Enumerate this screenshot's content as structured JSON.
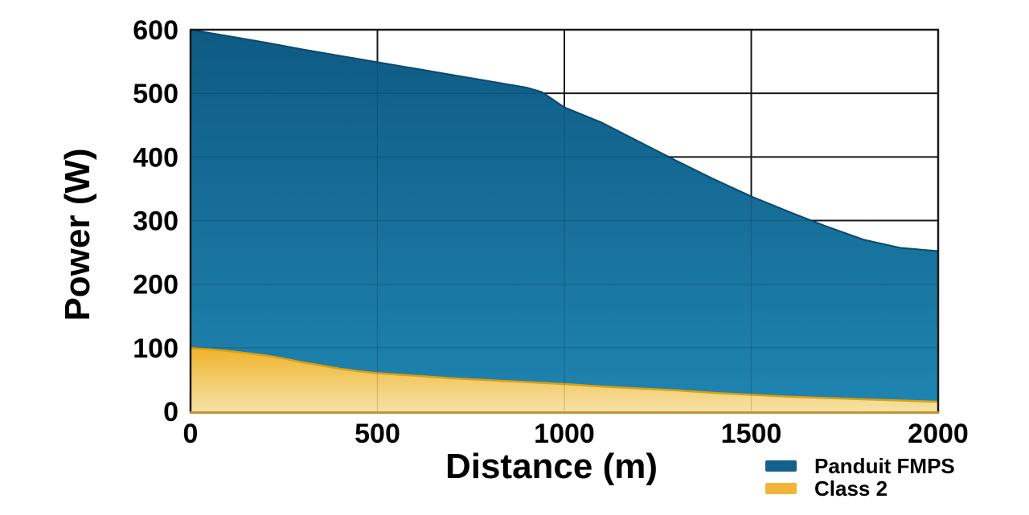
{
  "chart_data": {
    "type": "area",
    "title": "",
    "xlabel": "Distance (m)",
    "ylabel": "Power (W)",
    "xlim": [
      0,
      2000
    ],
    "ylim": [
      0,
      600
    ],
    "x_ticks": [
      0,
      500,
      1000,
      1500,
      2000
    ],
    "y_ticks": [
      0,
      100,
      200,
      300,
      400,
      500,
      600
    ],
    "grid": true,
    "legend_position": "bottom-right",
    "background": "#ffffff",
    "grid_color": "#1a1a1a",
    "text_color": "#000000",
    "bottom_axis_color": "#bd9638",
    "series": [
      {
        "name": "Panduit FMPS",
        "legend_color": "#15618d",
        "gradient_top": "#0e5a83",
        "gradient_bottom": "#1f85b1",
        "edge_color": "#0a4a6e",
        "x": [
          0,
          100,
          200,
          300,
          400,
          500,
          600,
          700,
          800,
          900,
          940,
          1000,
          1100,
          1200,
          1300,
          1400,
          1500,
          1600,
          1700,
          1800,
          1900,
          2000
        ],
        "values": [
          600,
          590,
          580,
          569,
          559,
          549,
          539,
          529,
          519,
          509,
          502,
          478,
          454,
          424,
          394,
          365,
          338,
          314,
          291,
          270,
          257,
          252
        ]
      },
      {
        "name": "Class 2",
        "legend_color": "#f0b537",
        "gradient_top": "#efb32a",
        "gradient_bottom": "#f6e2a6",
        "edge_color": "#dd9f12",
        "x": [
          0,
          100,
          200,
          250,
          300,
          350,
          400,
          450,
          500,
          600,
          700,
          800,
          900,
          1000,
          1100,
          1200,
          1300,
          1400,
          1500,
          1600,
          1700,
          1800,
          1900,
          2000
        ],
        "values": [
          100,
          95,
          88,
          83,
          77,
          72,
          67,
          63,
          60,
          56,
          52,
          49,
          46,
          43,
          39,
          36,
          33,
          29,
          26,
          23,
          21,
          19,
          17,
          15
        ]
      }
    ]
  }
}
